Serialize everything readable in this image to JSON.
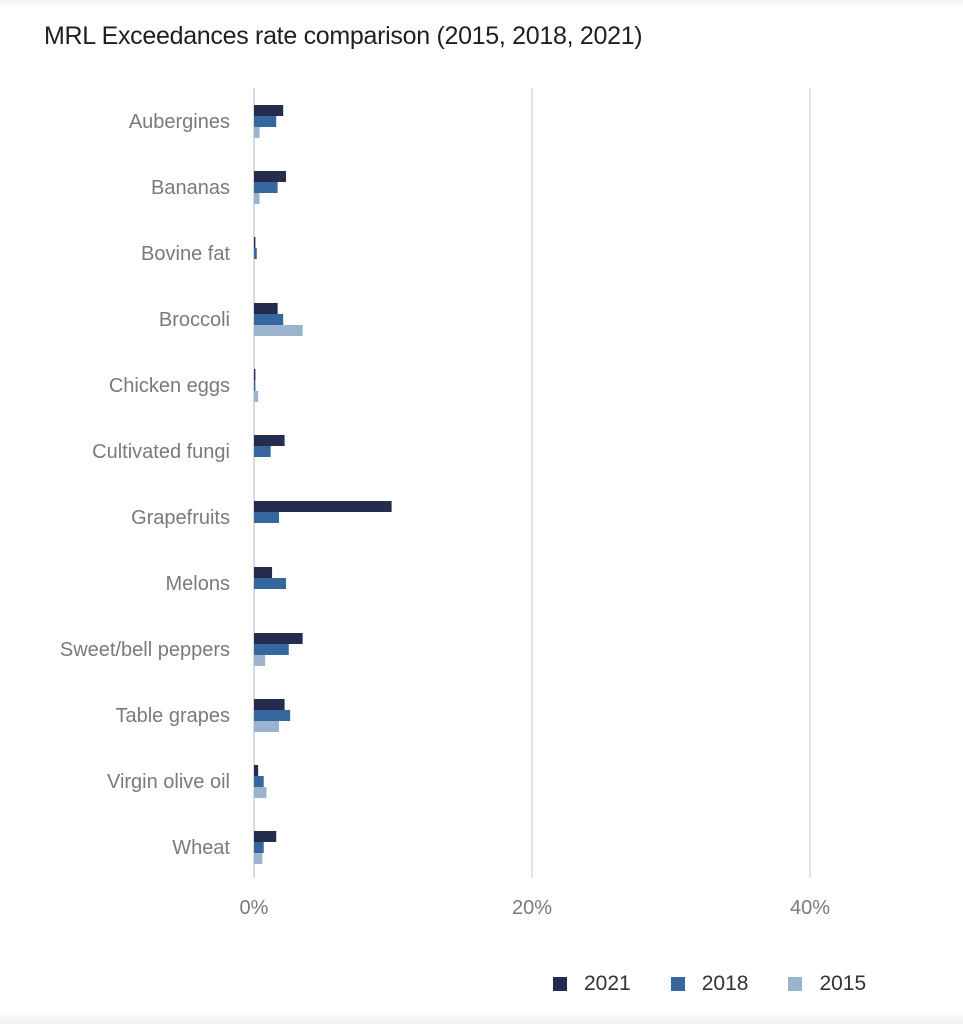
{
  "chart_data": {
    "type": "bar",
    "orientation": "horizontal",
    "title": "MRL Exceedances rate comparison (2015, 2018, 2021)",
    "xlabel": "",
    "ylabel": "",
    "xlim": [
      0,
      50
    ],
    "x_ticks": [
      "0%",
      "20%",
      "40%"
    ],
    "x_tick_values": [
      0,
      20,
      40
    ],
    "grid": true,
    "legend_position": "bottom-right",
    "categories": [
      "Aubergines",
      "Bananas",
      "Bovine fat",
      "Broccoli",
      "Chicken eggs",
      "Cultivated fungi",
      "Grapefruits",
      "Melons",
      "Sweet/bell peppers",
      "Table grapes",
      "Virgin olive oil",
      "Wheat"
    ],
    "series": [
      {
        "name": "2021",
        "color": "#262c4e",
        "values": [
          2.1,
          2.3,
          0.1,
          1.7,
          0.1,
          2.2,
          9.9,
          1.3,
          3.5,
          2.2,
          0.3,
          1.6
        ]
      },
      {
        "name": "2018",
        "color": "#35679e",
        "values": [
          1.6,
          1.7,
          0.2,
          2.1,
          0.1,
          1.2,
          1.8,
          2.3,
          2.5,
          2.6,
          0.7,
          0.7
        ]
      },
      {
        "name": "2015",
        "color": "#9cb3cf",
        "values": [
          0.4,
          0.4,
          0.0,
          3.5,
          0.3,
          0.0,
          0.0,
          0.0,
          0.8,
          1.8,
          0.9,
          0.6
        ]
      }
    ]
  }
}
